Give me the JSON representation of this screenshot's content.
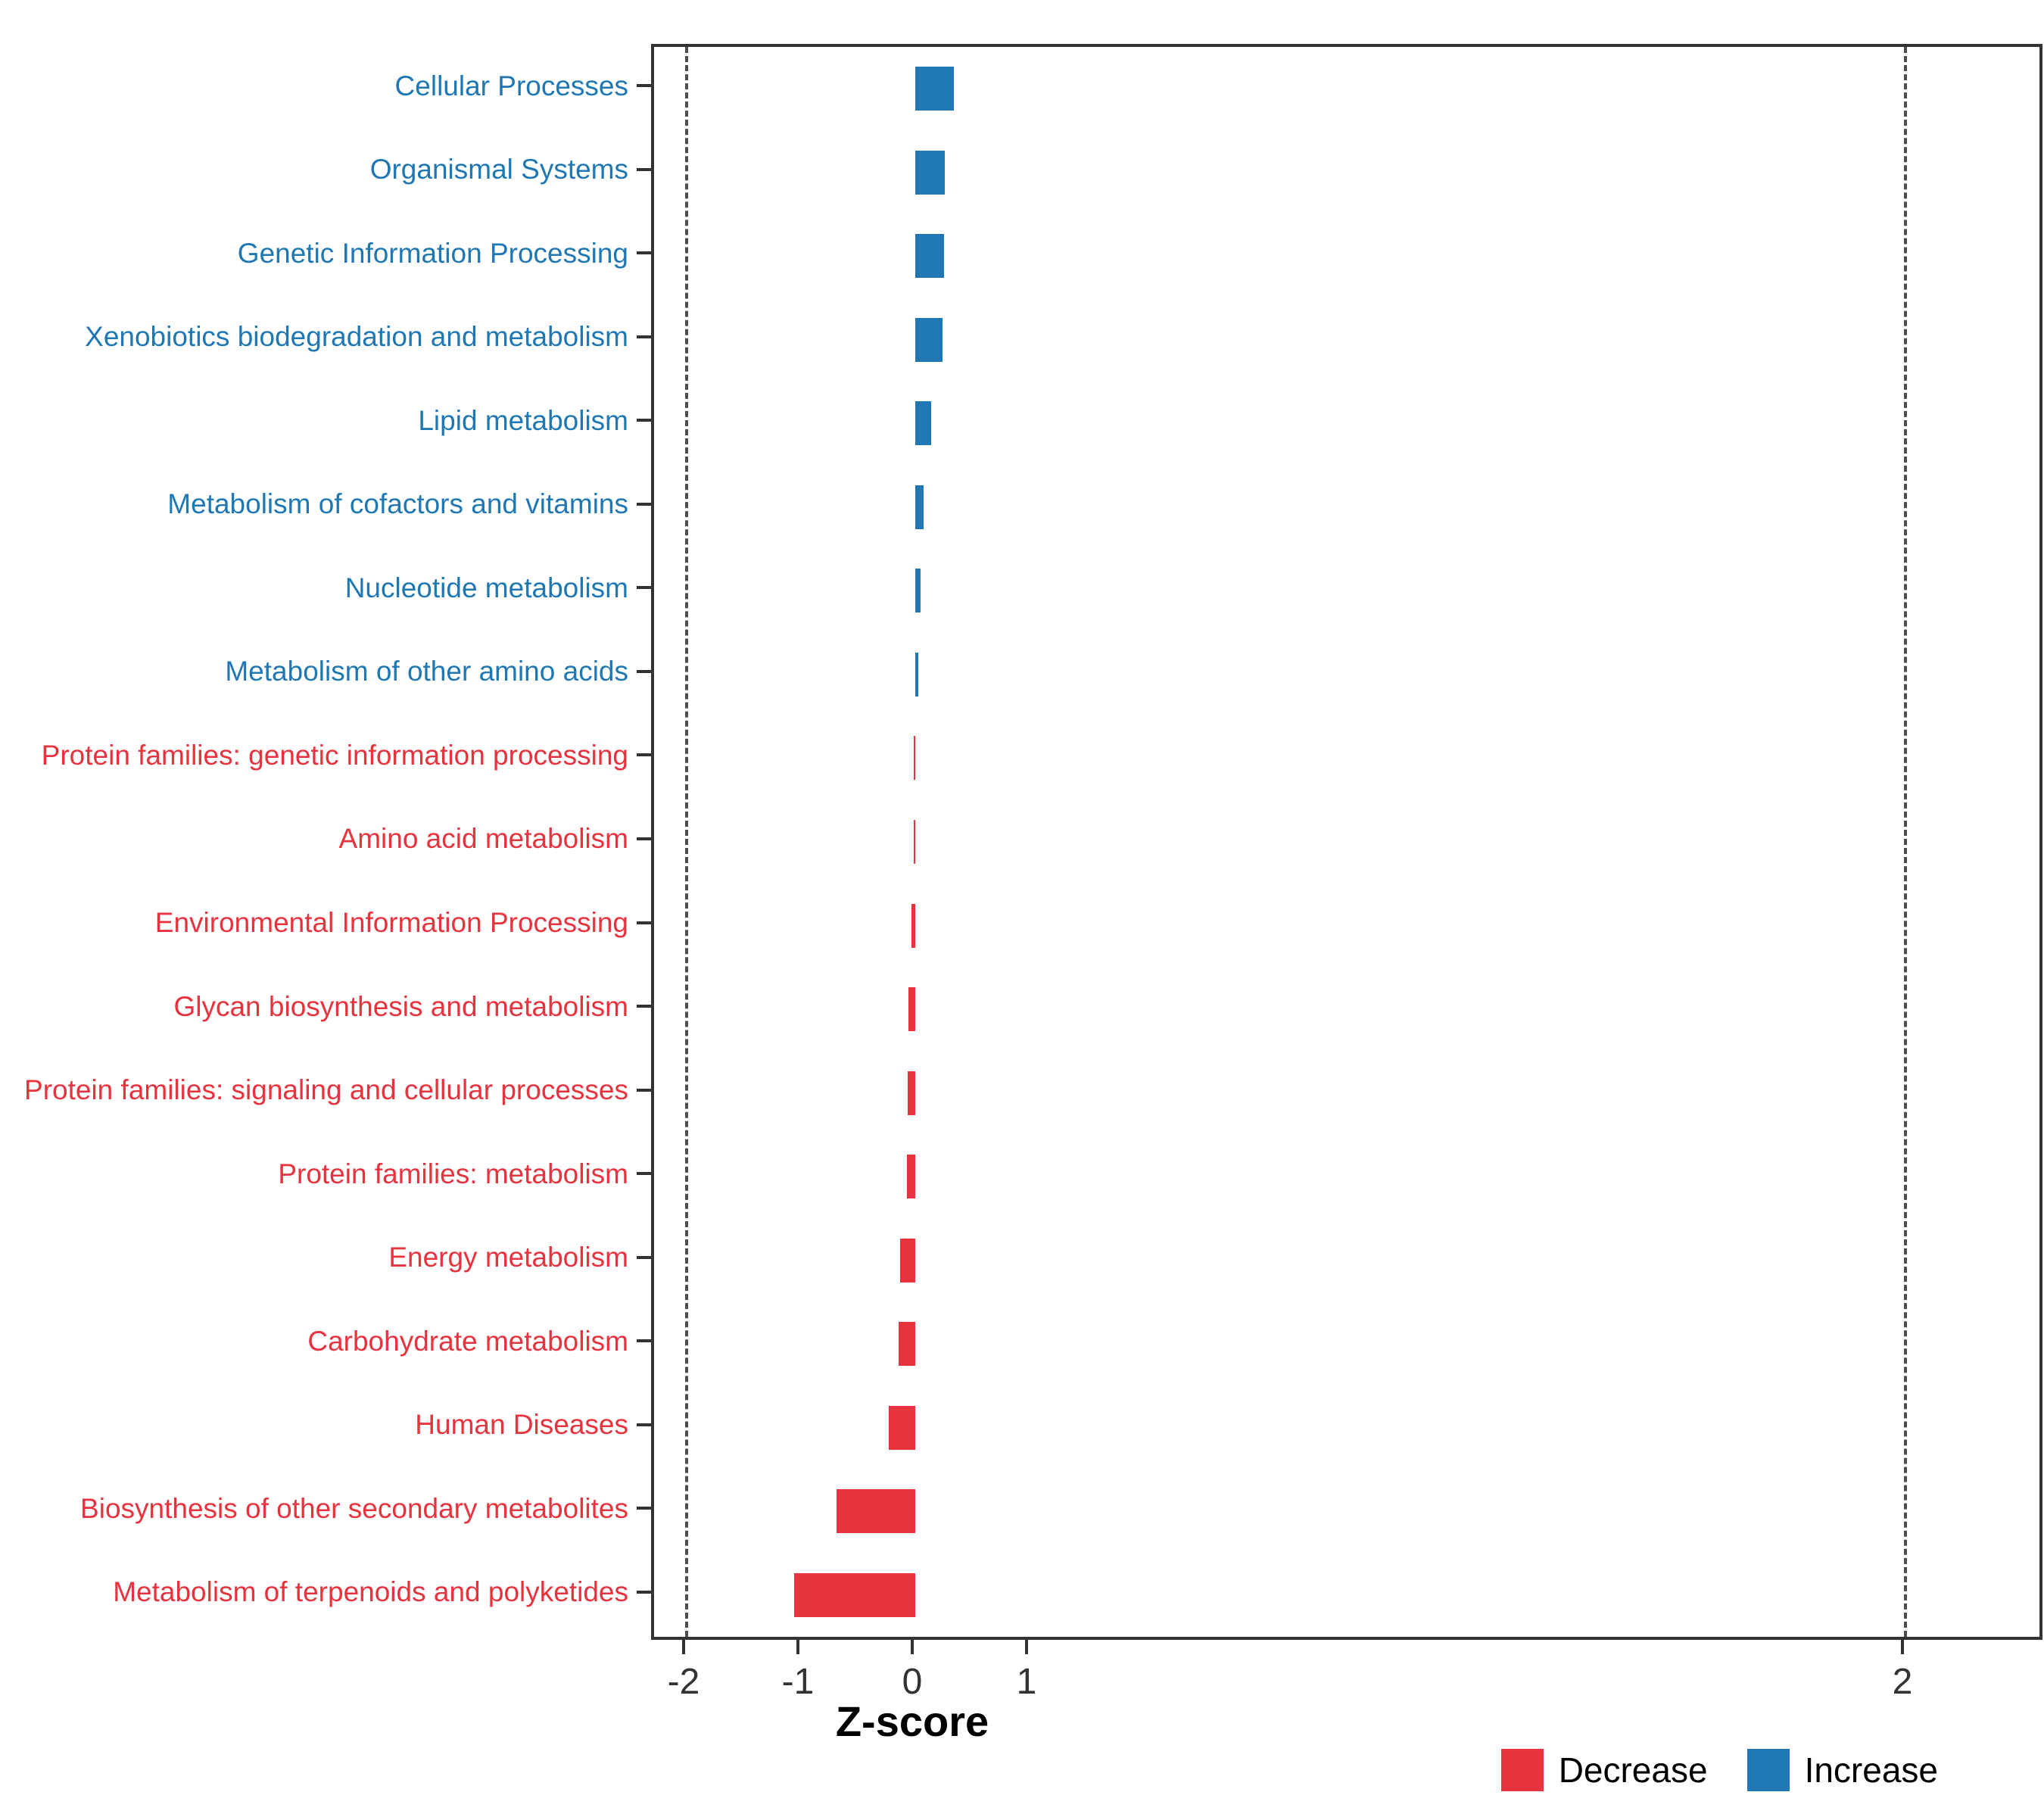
{
  "chart_data": {
    "type": "bar",
    "orientation": "horizontal",
    "xlabel": "Z-score",
    "x_ticks": [
      -2,
      -1,
      0,
      1,
      2
    ],
    "xlim": [
      -2.3,
      2.3
    ],
    "threshold_lines": [
      -2,
      2
    ],
    "categories": [
      "Cellular Processes",
      "Organismal Systems",
      "Genetic Information Processing",
      "Xenobiotics biodegradation and metabolism",
      "Lipid metabolism",
      "Metabolism of cofactors and vitamins",
      "Nucleotide metabolism",
      "Metabolism of other amino acids",
      "Protein families: genetic information processing",
      "Amino acid metabolism",
      "Environmental Information Processing",
      "Glycan biosynthesis and metabolism",
      "Protein families: signaling and cellular processes",
      "Protein families: metabolism",
      "Energy metabolism",
      "Carbohydrate metabolism",
      "Human Diseases",
      "Biosynthesis of other secondary metabolites",
      "Metabolism of terpenoids and polyketides"
    ],
    "values": [
      0.34,
      0.26,
      0.25,
      0.24,
      0.14,
      0.07,
      0.045,
      0.025,
      -0.005,
      -0.012,
      -0.03,
      -0.06,
      -0.065,
      -0.07,
      -0.13,
      -0.145,
      -0.23,
      -0.69,
      -1.06
    ],
    "colors": {
      "increase": "#1F78B4",
      "decrease": "#E8333E"
    },
    "legend": [
      {
        "label": "Decrease",
        "key": "decrease",
        "color": "#E8333E"
      },
      {
        "label": "Increase",
        "key": "increase",
        "color": "#1F78B4"
      }
    ],
    "legend_position": "bottom-right",
    "grid": "off"
  }
}
